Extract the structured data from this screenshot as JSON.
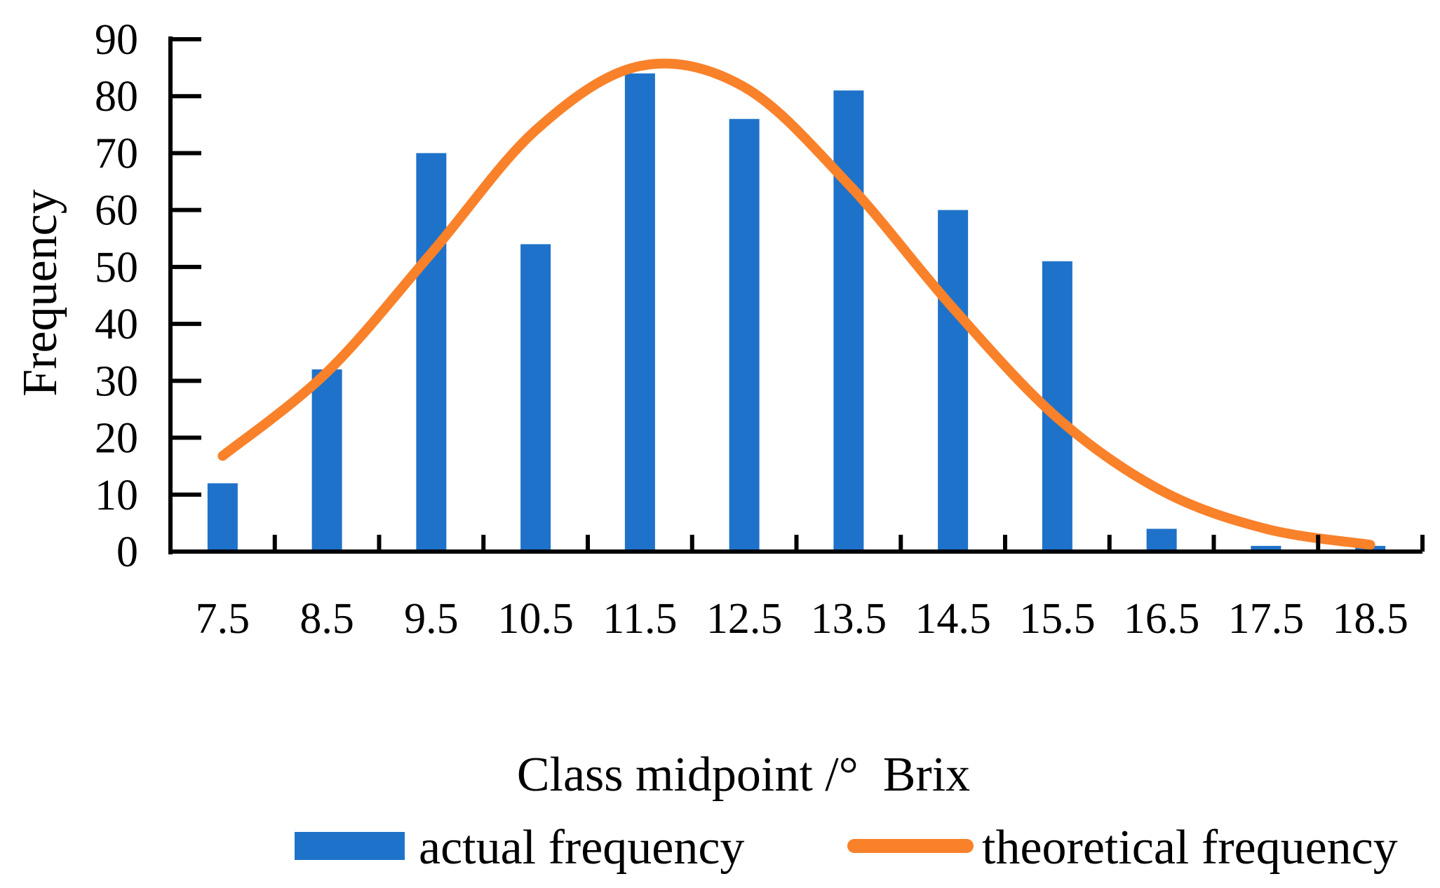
{
  "chart_data": {
    "type": "bar",
    "xlabel": "Class midpoint /°  Brix",
    "ylabel": "Frequency",
    "ylim": [
      0,
      90
    ],
    "yticks": [
      0,
      10,
      20,
      30,
      40,
      50,
      60,
      70,
      80,
      90
    ],
    "categories": [
      "7.5",
      "8.5",
      "9.5",
      "10.5",
      "11.5",
      "12.5",
      "13.5",
      "14.5",
      "15.5",
      "16.5",
      "17.5",
      "18.5"
    ],
    "series": [
      {
        "name": "actual frequency",
        "type": "bar",
        "color": "#1F72C9",
        "values": [
          12,
          32,
          70,
          54,
          84,
          76,
          81,
          60,
          51,
          4,
          1,
          1
        ]
      },
      {
        "name": "theoretical frequency",
        "type": "line",
        "color": "#F9812A",
        "values": [
          16.8,
          31.5,
          52.4,
          74.0,
          85.3,
          81.6,
          64.5,
          42.8,
          23.5,
          10.7,
          4.0,
          1.2
        ]
      }
    ],
    "legend_position": "bottom",
    "grid": false
  }
}
